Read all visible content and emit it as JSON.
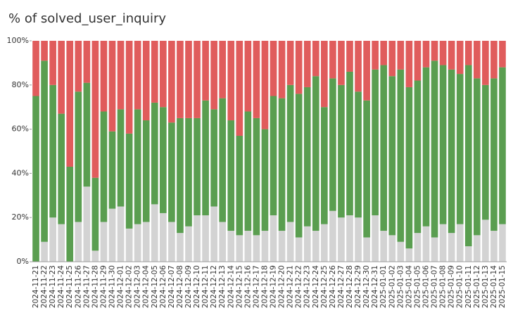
{
  "chart_data": {
    "type": "stacked_bar_percent",
    "title": "% of solved_user_inquiry",
    "categories": [
      "2024-11-21",
      "2024-11-22",
      "2024-11-23",
      "2024-11-24",
      "2024-11-25",
      "2024-11-26",
      "2024-11-27",
      "2024-11-28",
      "2024-11-29",
      "2024-11-30",
      "2024-12-01",
      "2024-12-02",
      "2024-12-03",
      "2024-12-04",
      "2024-12-05",
      "2024-12-06",
      "2024-12-07",
      "2024-12-08",
      "2024-12-09",
      "2024-12-10",
      "2024-12-11",
      "2024-12-12",
      "2024-12-13",
      "2024-12-14",
      "2024-12-15",
      "2024-12-16",
      "2024-12-17",
      "2024-12-18",
      "2024-12-19",
      "2024-12-20",
      "2024-12-21",
      "2024-12-22",
      "2024-12-23",
      "2024-12-24",
      "2024-12-25",
      "2024-12-26",
      "2024-12-27",
      "2024-12-28",
      "2024-12-29",
      "2024-12-30",
      "2024-12-31",
      "2025-01-01",
      "2025-01-02",
      "2025-01-03",
      "2025-01-04",
      "2025-01-05",
      "2025-01-06",
      "2025-01-07",
      "2025-01-08",
      "2025-01-09",
      "2025-01-10",
      "2025-01-11",
      "2025-01-12",
      "2025-01-13",
      "2025-01-14",
      "2025-01-15"
    ],
    "series": [
      {
        "color": "#d3d3d3",
        "values": [
          0,
          9,
          20,
          17,
          0,
          18,
          34,
          5,
          18,
          24,
          25,
          15,
          17,
          18,
          26,
          22,
          18,
          13,
          16,
          21,
          21,
          25,
          18,
          14,
          12,
          14,
          12,
          14,
          21,
          14,
          18,
          11,
          16,
          14,
          17,
          23,
          20,
          21,
          20,
          11,
          21,
          14,
          12,
          9,
          6,
          13,
          16,
          11,
          17,
          13,
          17,
          7,
          12,
          19,
          14,
          17
        ]
      },
      {
        "color": "#5a9e50",
        "values": [
          75,
          82,
          60,
          50,
          43,
          59,
          47,
          33,
          50,
          35,
          44,
          43,
          52,
          46,
          46,
          48,
          45,
          52,
          49,
          44,
          52,
          44,
          56,
          50,
          45,
          54,
          53,
          46,
          54,
          60,
          62,
          65,
          63,
          70,
          53,
          60,
          60,
          65,
          57,
          62,
          66,
          75,
          72,
          78,
          73,
          69,
          72,
          80,
          72,
          74,
          68,
          82,
          71,
          61,
          69,
          71
        ]
      },
      {
        "color": "#e05c5c",
        "values": [
          25,
          9,
          20,
          33,
          57,
          23,
          19,
          62,
          32,
          41,
          31,
          42,
          31,
          36,
          28,
          30,
          37,
          35,
          35,
          35,
          27,
          31,
          26,
          36,
          43,
          32,
          35,
          40,
          25,
          26,
          20,
          24,
          21,
          16,
          30,
          17,
          20,
          14,
          23,
          27,
          13,
          11,
          16,
          13,
          21,
          18,
          12,
          9,
          11,
          13,
          15,
          11,
          17,
          20,
          17,
          12
        ]
      }
    ],
    "ylim": [
      0,
      100
    ],
    "yticks": [
      {
        "value": 0,
        "label": "0%"
      },
      {
        "value": 20,
        "label": "20%"
      },
      {
        "value": 40,
        "label": "40%"
      },
      {
        "value": 60,
        "label": "60%"
      },
      {
        "value": 80,
        "label": "80%"
      },
      {
        "value": 100,
        "label": "100%"
      }
    ]
  }
}
